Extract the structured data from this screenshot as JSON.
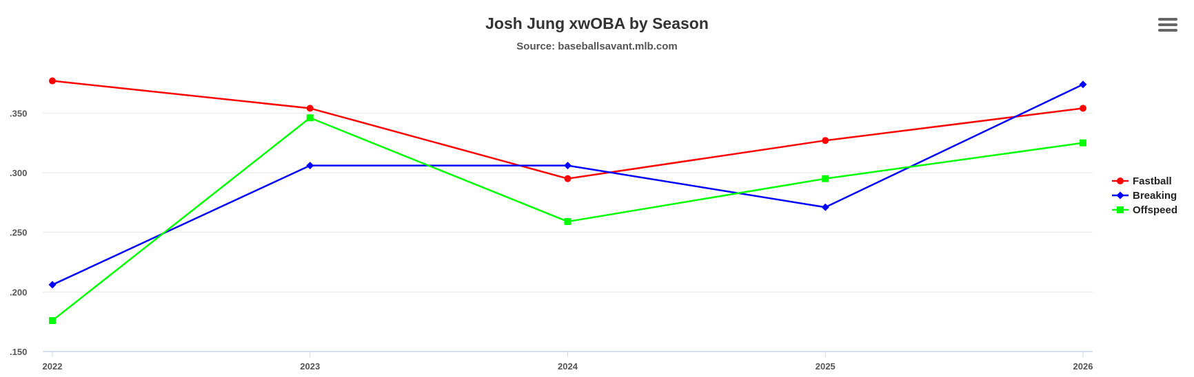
{
  "chart_data": {
    "type": "line",
    "title": "Josh Jung xwOBA by Season",
    "subtitle": "Source: baseballsavant.mlb.com",
    "xlabel": "",
    "ylabel": "",
    "categories": [
      "2022",
      "2023",
      "2024",
      "2025",
      "2026"
    ],
    "yticks": [
      ".150",
      ".200",
      ".250",
      ".300",
      ".350"
    ],
    "ytick_values": [
      0.15,
      0.2,
      0.25,
      0.3,
      0.35
    ],
    "ylim": [
      0.15,
      0.39
    ],
    "grid": true,
    "legend_position": "right",
    "series": [
      {
        "name": "Fastball",
        "color": "#ff0000",
        "marker": "circle",
        "values": [
          0.377,
          0.354,
          0.295,
          0.327,
          0.354
        ]
      },
      {
        "name": "Breaking",
        "color": "#0000ff",
        "marker": "diamond",
        "values": [
          0.206,
          0.306,
          0.306,
          0.271,
          0.374
        ]
      },
      {
        "name": "Offspeed",
        "color": "#00ff00",
        "marker": "square",
        "values": [
          0.176,
          0.346,
          0.259,
          0.295,
          0.325
        ]
      }
    ]
  },
  "menu": {
    "icon": "hamburger-menu-icon"
  }
}
